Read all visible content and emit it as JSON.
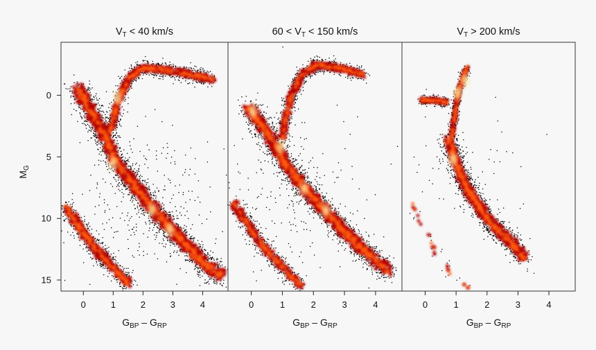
{
  "chart_data": {
    "type": "scatter",
    "description_kind": "color-magnitude density diagrams",
    "colors": {
      "background": "#f7f7f7",
      "dense": "#ffe9a0",
      "mid": "#ff5a10",
      "low": "#b50000",
      "sparse": "#000000",
      "frame": "#333333"
    },
    "shared": {
      "xlabel": {
        "main": "G",
        "sub1": "BP",
        "mid": " – G",
        "sub2": "RP"
      },
      "ylabel": {
        "main": "M",
        "sub": "G"
      },
      "xlim": [
        -0.75,
        4.85
      ],
      "ylim": [
        15.9,
        -4.3
      ],
      "xticks": [
        "0",
        "1",
        "2",
        "3",
        "4"
      ],
      "xtick_values": [
        0,
        1,
        2,
        3,
        4
      ],
      "yticks": [
        "0",
        "5",
        "10",
        "15"
      ],
      "ytick_values": [
        0,
        5,
        10,
        15
      ]
    },
    "panels": [
      {
        "title": {
          "pre": "V",
          "sub": "T",
          "post": " < 40 km/s"
        },
        "seed": 11,
        "curves": [
          {
            "name": "main-sequence",
            "points": [
              [
                -0.2,
                -0.5
              ],
              [
                0.3,
                1.5
              ],
              [
                0.75,
                3.5
              ],
              [
                1.0,
                5.0
              ],
              [
                1.6,
                7.0
              ],
              [
                2.2,
                8.8
              ],
              [
                2.8,
                10.5
              ],
              [
                3.4,
                12.0
              ],
              [
                4.0,
                13.6
              ],
              [
                4.6,
                14.6
              ]
            ],
            "width": 0.55,
            "n": 2600
          },
          {
            "name": "giant-branch",
            "points": [
              [
                0.9,
                3.0
              ],
              [
                1.05,
                1.5
              ],
              [
                1.25,
                0.0
              ],
              [
                1.55,
                -1.5
              ],
              [
                2.0,
                -2.2
              ],
              [
                2.6,
                -2.1
              ],
              [
                3.4,
                -1.8
              ],
              [
                4.3,
                -1.3
              ]
            ],
            "width": 0.35,
            "n": 1100
          },
          {
            "name": "white-dwarfs",
            "points": [
              [
                -0.6,
                9.0
              ],
              [
                0.0,
                11.2
              ],
              [
                0.6,
                13.0
              ],
              [
                1.2,
                14.5
              ],
              [
                1.5,
                15.3
              ]
            ],
            "width": 0.4,
            "n": 800
          }
        ],
        "hotspots": [
          [
            1.0,
            5.5
          ],
          [
            2.3,
            9.3
          ],
          [
            2.9,
            10.9
          ],
          [
            1.15,
            0.2
          ]
        ],
        "halo": {
          "center": [
            2.0,
            9.0
          ],
          "n": 280
        }
      },
      {
        "title": {
          "pre": "60 < V",
          "sub": "T",
          "post": " < 150 km/s"
        },
        "seed": 23,
        "curves": [
          {
            "name": "main-sequence",
            "points": [
              [
                -0.1,
                1.0
              ],
              [
                0.35,
                2.5
              ],
              [
                0.8,
                4.2
              ],
              [
                1.1,
                5.6
              ],
              [
                1.7,
                7.5
              ],
              [
                2.3,
                9.2
              ],
              [
                2.9,
                10.8
              ],
              [
                3.5,
                12.3
              ],
              [
                4.0,
                13.4
              ],
              [
                4.4,
                14.3
              ]
            ],
            "width": 0.5,
            "n": 2300
          },
          {
            "name": "giant-branch",
            "points": [
              [
                1.0,
                3.5
              ],
              [
                1.1,
                2.0
              ],
              [
                1.25,
                0.3
              ],
              [
                1.6,
                -1.6
              ],
              [
                2.1,
                -2.5
              ],
              [
                2.8,
                -2.2
              ],
              [
                3.6,
                -1.7
              ]
            ],
            "width": 0.32,
            "n": 900
          },
          {
            "name": "white-dwarfs",
            "points": [
              [
                -0.55,
                8.8
              ],
              [
                0.0,
                11.0
              ],
              [
                0.6,
                12.9
              ],
              [
                1.2,
                14.5
              ],
              [
                1.6,
                15.4
              ]
            ],
            "width": 0.35,
            "n": 650
          }
        ],
        "hotspots": [
          [
            0.95,
            4.2
          ],
          [
            1.7,
            7.6
          ],
          [
            2.4,
            9.3
          ],
          [
            0.05,
            1.3
          ]
        ],
        "halo": {
          "center": [
            1.2,
            8.0
          ],
          "n": 200
        }
      },
      {
        "title": {
          "pre": "V",
          "sub": "T",
          "post": " > 200 km/s"
        },
        "seed": 37,
        "curves": [
          {
            "name": "main-sequence",
            "points": [
              [
                0.75,
                3.6
              ],
              [
                0.95,
                5.2
              ],
              [
                1.3,
                7.3
              ],
              [
                1.8,
                9.3
              ],
              [
                2.3,
                10.8
              ],
              [
                2.8,
                12.0
              ],
              [
                3.2,
                13.2
              ]
            ],
            "width": 0.45,
            "n": 1500
          },
          {
            "name": "giant-branch",
            "points": [
              [
                0.85,
                3.5
              ],
              [
                0.95,
                1.8
              ],
              [
                1.05,
                0.0
              ],
              [
                1.2,
                -1.2
              ],
              [
                1.35,
                -2.3
              ]
            ],
            "width": 0.18,
            "n": 500
          },
          {
            "name": "horizontal-branch",
            "points": [
              [
                -0.1,
                0.4
              ],
              [
                0.3,
                0.4
              ],
              [
                0.7,
                0.6
              ]
            ],
            "width": 0.22,
            "n": 250
          },
          {
            "name": "white-dwarfs",
            "points": [
              [
                -0.4,
                8.8
              ],
              [
                0.2,
                12.0
              ],
              [
                0.8,
                14.5
              ],
              [
                1.4,
                15.6
              ]
            ],
            "width": 0.25,
            "n": 40
          }
        ],
        "hotspots": [
          [
            0.9,
            5.2
          ],
          [
            1.05,
            -0.2
          ],
          [
            1.3,
            -1.2
          ]
        ],
        "halo": {
          "center": [
            1.5,
            7.0
          ],
          "n": 60
        }
      }
    ]
  }
}
